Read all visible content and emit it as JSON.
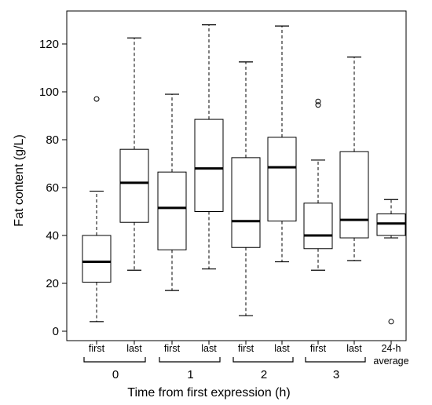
{
  "chart_data": {
    "type": "boxplot",
    "xlabel": "Time from first expression (h)",
    "ylabel": "Fat content (g/L)",
    "ylim": [
      0,
      130
    ],
    "yticks": [
      0,
      20,
      40,
      60,
      80,
      100,
      120
    ],
    "grid": false,
    "boxes": [
      {
        "label": "first",
        "group": "0",
        "whisker_low": 4,
        "q1": 20.5,
        "median": 29,
        "q3": 40,
        "whisker_high": 58.5,
        "outliers": [
          97
        ]
      },
      {
        "label": "last",
        "group": "0",
        "whisker_low": 25.5,
        "q1": 45.5,
        "median": 62,
        "q3": 76,
        "whisker_high": 122.5,
        "outliers": []
      },
      {
        "label": "first",
        "group": "1",
        "whisker_low": 17,
        "q1": 34,
        "median": 51.5,
        "q3": 66.5,
        "whisker_high": 99,
        "outliers": []
      },
      {
        "label": "last",
        "group": "1",
        "whisker_low": 26,
        "q1": 50,
        "median": 68,
        "q3": 88.5,
        "whisker_high": 128,
        "outliers": []
      },
      {
        "label": "first",
        "group": "2",
        "whisker_low": 6.5,
        "q1": 35,
        "median": 46,
        "q3": 72.5,
        "whisker_high": 112.5,
        "outliers": []
      },
      {
        "label": "last",
        "group": "2",
        "whisker_low": 29,
        "q1": 46,
        "median": 68.5,
        "q3": 81,
        "whisker_high": 127.5,
        "outliers": []
      },
      {
        "label": "first",
        "group": "3",
        "whisker_low": 25.5,
        "q1": 34.5,
        "median": 40,
        "q3": 53.5,
        "whisker_high": 71.5,
        "outliers": [
          94.5,
          96
        ]
      },
      {
        "label": "last",
        "group": "3",
        "whisker_low": 29.5,
        "q1": 39,
        "median": 46.5,
        "q3": 75,
        "whisker_high": 114.5,
        "outliers": []
      },
      {
        "label": "24-h average",
        "group": "",
        "whisker_low": 39,
        "q1": 40,
        "median": 45,
        "q3": 49,
        "whisker_high": 55,
        "outliers": [
          4
        ]
      }
    ],
    "groups": [
      "0",
      "1",
      "2",
      "3"
    ]
  }
}
